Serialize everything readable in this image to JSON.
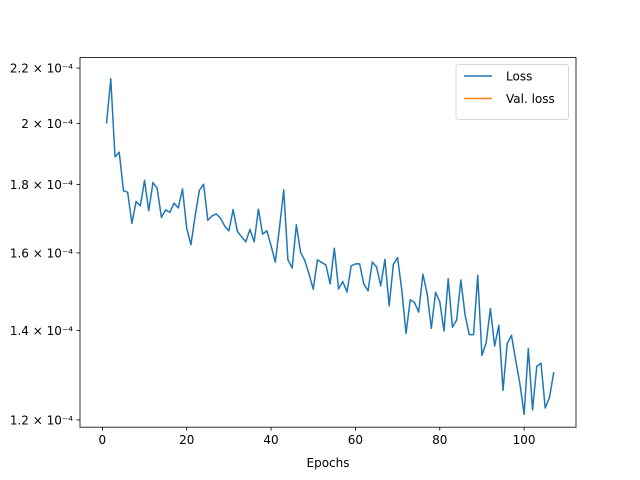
{
  "chart_data": {
    "type": "line",
    "title": "",
    "xlabel": "Epochs",
    "ylabel": "",
    "xlim": [
      -5.3,
      112.3
    ],
    "ylim": [
      0.0001185,
      0.000224
    ],
    "yscale": "log",
    "grid": false,
    "legend_position": "top-right",
    "x_ticks": [
      0,
      20,
      40,
      60,
      80,
      100
    ],
    "y_ticks": [
      {
        "value": 0.00012,
        "label": "1.2 × 10⁻⁴"
      },
      {
        "value": 0.00014,
        "label": "1.4 × 10⁻⁴"
      },
      {
        "value": 0.00016,
        "label": "1.6 × 10⁻⁴"
      },
      {
        "value": 0.00018,
        "label": "1.8 × 10⁻⁴"
      },
      {
        "value": 0.0002,
        "label": "2 × 10⁻⁴"
      },
      {
        "value": 0.00022,
        "label": "2.2 × 10⁻⁴"
      }
    ],
    "series": [
      {
        "name": "Loss",
        "color": "#1f77b4",
        "x": [
          1,
          2,
          3,
          4,
          5,
          6,
          7,
          8,
          9,
          10,
          11,
          12,
          13,
          14,
          15,
          16,
          17,
          18,
          19,
          20,
          21,
          22,
          23,
          24,
          25,
          26,
          27,
          28,
          29,
          30,
          31,
          32,
          33,
          34,
          35,
          36,
          37,
          38,
          39,
          40,
          41,
          42,
          43,
          44,
          45,
          46,
          47,
          48,
          49,
          50,
          51,
          52,
          53,
          54,
          55,
          56,
          57,
          58,
          59,
          60,
          61,
          62,
          63,
          64,
          65,
          66,
          67,
          68,
          69,
          70,
          71,
          72,
          73,
          74,
          75,
          76,
          77,
          78,
          79,
          80,
          81,
          82,
          83,
          84,
          85,
          86,
          87,
          88,
          89,
          90,
          91,
          92,
          93,
          94,
          95,
          96,
          97,
          98,
          99,
          100,
          101,
          102,
          103,
          104,
          105,
          106,
          107
        ],
        "values": [
          0.0002002,
          0.0002159,
          0.0001888,
          0.0001903,
          0.0001781,
          0.0001776,
          0.0001684,
          0.0001748,
          0.0001735,
          0.0001813,
          0.0001721,
          0.0001806,
          0.0001788,
          0.0001701,
          0.0001723,
          0.0001716,
          0.0001743,
          0.0001729,
          0.0001786,
          0.0001669,
          0.0001623,
          0.0001705,
          0.0001782,
          0.0001801,
          0.0001693,
          0.0001705,
          0.0001711,
          0.0001699,
          0.0001676,
          0.0001662,
          0.0001724,
          0.0001661,
          0.0001645,
          0.0001631,
          0.0001666,
          0.0001631,
          0.0001725,
          0.0001653,
          0.0001662,
          0.000162,
          0.0001575,
          0.0001671,
          0.0001783,
          0.0001581,
          0.0001559,
          0.0001679,
          0.0001602,
          0.0001579,
          0.0001543,
          0.0001503,
          0.0001581,
          0.0001574,
          0.0001567,
          0.0001517,
          0.0001613,
          0.0001504,
          0.0001523,
          0.0001496,
          0.0001565,
          0.000157,
          0.000157,
          0.0001516,
          0.0001499,
          0.0001575,
          0.0001562,
          0.0001512,
          0.0001582,
          0.0001461,
          0.0001569,
          0.0001587,
          0.00015,
          0.0001393,
          0.0001476,
          0.0001469,
          0.0001445,
          0.0001542,
          0.0001492,
          0.0001405,
          0.0001495,
          0.0001471,
          0.0001399,
          0.000153,
          0.0001408,
          0.0001425,
          0.0001527,
          0.0001438,
          0.000139,
          0.000139,
          0.0001539,
          0.0001341,
          0.000137,
          0.0001454,
          0.0001363,
          0.0001412,
          0.0001263,
          0.0001369,
          0.0001388,
          0.000133,
          0.0001277,
          0.0001212,
          0.0001357,
          0.0001221,
          0.0001316,
          0.0001323,
          0.0001225,
          0.0001247,
          0.0001301
        ]
      },
      {
        "name": "Val. loss",
        "color": "#ff7f0e",
        "x": [],
        "values": []
      }
    ]
  }
}
